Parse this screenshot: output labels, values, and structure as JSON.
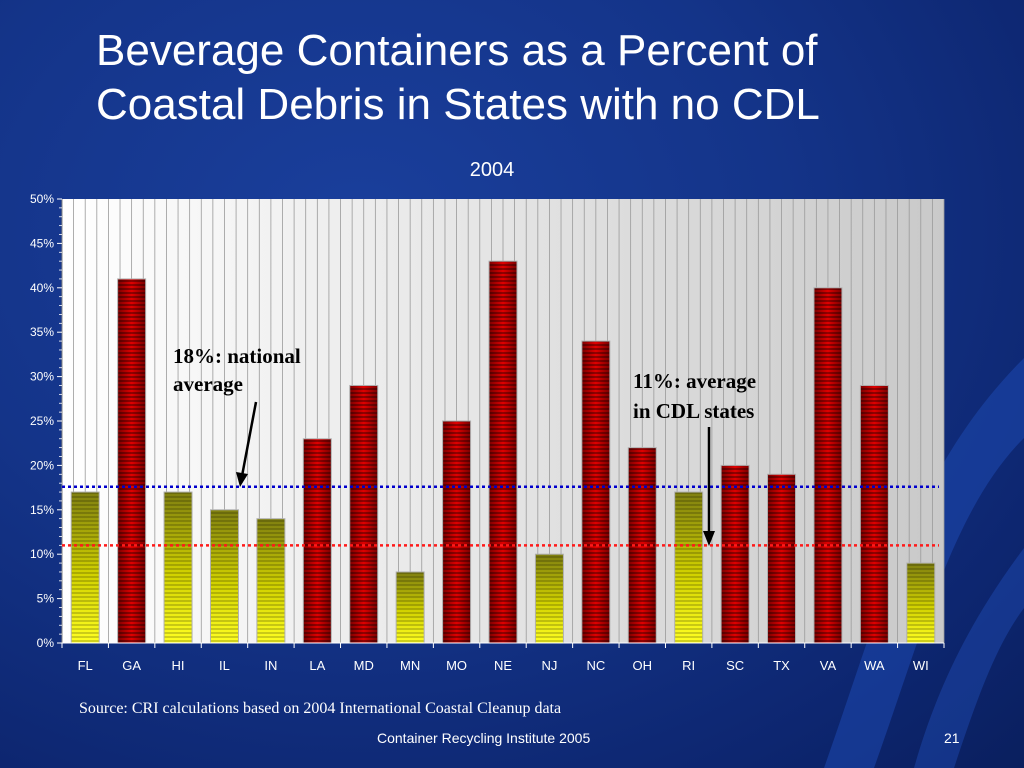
{
  "slide": {
    "title_line1": "Beverage Containers as a Percent of",
    "title_line2": "Coastal Debris in States with no CDL",
    "source": "Source: CRI calculations based on 2004 International Coastal Cleanup data",
    "footer": "Container Recycling Institute   2005",
    "page_number": "21"
  },
  "colors": {
    "background": "#143489",
    "cdl_bar": "#e8e800",
    "non_cdl_bar": "#e00000",
    "national_line": "#0000cc",
    "cdl_line": "#ff1a1a"
  },
  "chart_data": {
    "type": "bar",
    "subtitle": "2004",
    "categories": [
      "FL",
      "GA",
      "HI",
      "IL",
      "IN",
      "LA",
      "MD",
      "MN",
      "MO",
      "NE",
      "NJ",
      "NC",
      "OH",
      "RI",
      "SC",
      "TX",
      "VA",
      "WA",
      "WI"
    ],
    "values": [
      17,
      41,
      17,
      15,
      14,
      23,
      29,
      8,
      25,
      43,
      10,
      34,
      22,
      17,
      20,
      19,
      40,
      29,
      9
    ],
    "bar_style": [
      "yellow",
      "red",
      "yellow",
      "yellow",
      "yellow",
      "red",
      "red",
      "yellow",
      "red",
      "red",
      "yellow",
      "red",
      "red",
      "yellow",
      "red",
      "red",
      "red",
      "red",
      "yellow"
    ],
    "ylim": [
      0,
      50
    ],
    "yticks": [
      0,
      5,
      10,
      15,
      20,
      25,
      30,
      35,
      40,
      45,
      50
    ],
    "ytick_labels": [
      "0%",
      "5%",
      "10%",
      "15%",
      "20%",
      "25%",
      "30%",
      "35%",
      "40%",
      "45%",
      "50%"
    ],
    "xlabel": "",
    "ylabel": "",
    "grid": "vertical",
    "reference_lines": [
      {
        "value": 17.6,
        "color": "#0000cc"
      },
      {
        "value": 11,
        "color": "#ff1a1a"
      }
    ],
    "annotations": [
      {
        "line1": "18%: national",
        "line2": "average"
      },
      {
        "line1": "11%: average",
        "line2": "in CDL states"
      }
    ]
  }
}
